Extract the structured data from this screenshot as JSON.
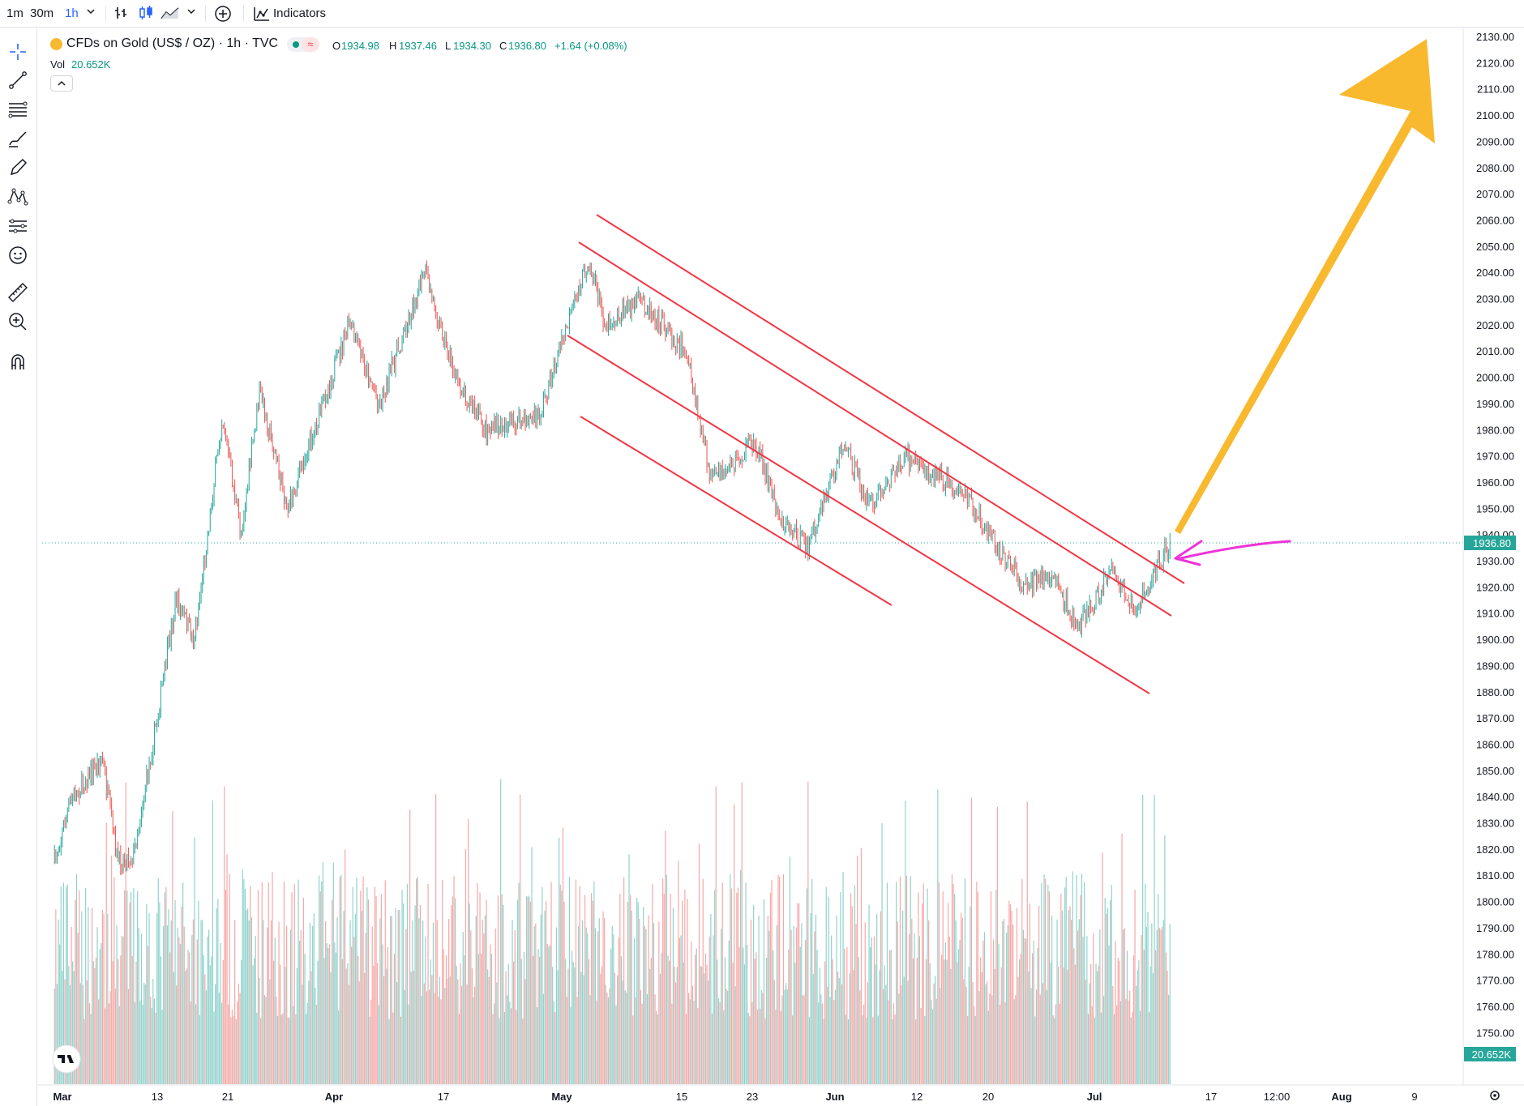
{
  "toolbar": {
    "intervals": [
      "1m",
      "30m",
      "1h"
    ],
    "active_interval": "1h",
    "indicators_label": "Indicators"
  },
  "legend": {
    "symbol_title": "CFDs on Gold (US$ / OZ) · 1h · TVC",
    "open_label": "O",
    "open": "1934.98",
    "high_label": "H",
    "high": "1937.46",
    "low_label": "L",
    "low": "1934.30",
    "close_label": "C",
    "close": "1936.80",
    "change": "+1.64 (+0.08%)",
    "vol_label": "Vol",
    "vol_value": "20.652K",
    "market_status_icon": "market-open-dot-icon",
    "data_status_icon": "approx-icon"
  },
  "price_axis": {
    "ticks": [
      "2130.00",
      "2120.00",
      "2110.00",
      "2100.00",
      "2090.00",
      "2080.00",
      "2070.00",
      "2060.00",
      "2050.00",
      "2040.00",
      "2030.00",
      "2020.00",
      "2010.00",
      "2000.00",
      "1990.00",
      "1980.00",
      "1970.00",
      "1960.00",
      "1950.00",
      "1940.00",
      "1930.00",
      "1920.00",
      "1910.00",
      "1900.00",
      "1890.00",
      "1880.00",
      "1870.00",
      "1860.00",
      "1850.00",
      "1840.00",
      "1830.00",
      "1820.00",
      "1810.00",
      "1800.00",
      "1790.00",
      "1780.00",
      "1770.00",
      "1760.00",
      "1750.00"
    ],
    "last_price_label": "1936.80",
    "volume_label": "20.652K"
  },
  "time_axis": {
    "labels": [
      "Mar",
      "13",
      "21",
      "Apr",
      "17",
      "May",
      "15",
      "23",
      "Jun",
      "12",
      "20",
      "Jul",
      "17",
      "12:00",
      "Aug",
      "9"
    ],
    "bold_labels": [
      "Mar",
      "Apr",
      "May",
      "Jun",
      "Jul",
      "Aug"
    ]
  },
  "colors": {
    "up": "#26a69a",
    "down": "#ef5350",
    "channel": "#f23645",
    "arrow": "#f9b92e",
    "pink_arrow": "#ee33d8",
    "accent": "#2962ff"
  },
  "chart_data": {
    "type": "candlestick",
    "symbol": "CFDs on Gold (US$ / OZ)",
    "interval": "1h",
    "source": "TVC",
    "ylim": [
      1745,
      2135
    ],
    "last_price": 1936.8,
    "price_path": [
      {
        "date": "Feb 28",
        "price": 1815
      },
      {
        "date": "Mar 2",
        "price": 1838
      },
      {
        "date": "Mar 6",
        "price": 1855
      },
      {
        "date": "Mar 8",
        "price": 1815
      },
      {
        "date": "Mar 10",
        "price": 1818
      },
      {
        "date": "Mar 13",
        "price": 1870
      },
      {
        "date": "Mar 15",
        "price": 1915
      },
      {
        "date": "Mar 17",
        "price": 1900
      },
      {
        "date": "Mar 20",
        "price": 1985
      },
      {
        "date": "Mar 22",
        "price": 1940
      },
      {
        "date": "Mar 24",
        "price": 1995
      },
      {
        "date": "Mar 27",
        "price": 1950
      },
      {
        "date": "Apr 3",
        "price": 2020
      },
      {
        "date": "Apr 7",
        "price": 1990
      },
      {
        "date": "Apr 13",
        "price": 2040
      },
      {
        "date": "Apr 17",
        "price": 2000
      },
      {
        "date": "Apr 21",
        "price": 1980
      },
      {
        "date": "Apr 28",
        "price": 1985
      },
      {
        "date": "May 4",
        "price": 2045
      },
      {
        "date": "May 6",
        "price": 2020
      },
      {
        "date": "May 10",
        "price": 2030
      },
      {
        "date": "May 15",
        "price": 2010
      },
      {
        "date": "May 18",
        "price": 1960
      },
      {
        "date": "May 23",
        "price": 1975
      },
      {
        "date": "May 26",
        "price": 1945
      },
      {
        "date": "May 29",
        "price": 1935
      },
      {
        "date": "Jun 2",
        "price": 1975
      },
      {
        "date": "Jun 5",
        "price": 1950
      },
      {
        "date": "Jun 9",
        "price": 1970
      },
      {
        "date": "Jun 14",
        "price": 1960
      },
      {
        "date": "Jun 16",
        "price": 1955
      },
      {
        "date": "Jun 21",
        "price": 1930
      },
      {
        "date": "Jun 23",
        "price": 1920
      },
      {
        "date": "Jun 26",
        "price": 1925
      },
      {
        "date": "Jun 29",
        "price": 1905
      },
      {
        "date": "Jul 3",
        "price": 1925
      },
      {
        "date": "Jul 6",
        "price": 1912
      },
      {
        "date": "Jul 8",
        "price": 1925
      },
      {
        "date": "Jul 10",
        "price": 1936.8
      }
    ],
    "drawings": [
      {
        "kind": "trend-line",
        "from": {
          "date": "May 4",
          "price": 2062
        },
        "to": {
          "date": "Jul 11",
          "price": 1922
        }
      },
      {
        "kind": "trend-line",
        "from": {
          "date": "May 3",
          "price": 2053
        },
        "to": {
          "date": "Jul 11",
          "price": 1908
        }
      },
      {
        "kind": "trend-line",
        "from": {
          "date": "May 2",
          "price": 2016
        },
        "to": {
          "date": "Jul 11",
          "price": 1880
        }
      },
      {
        "kind": "trend-line",
        "from": {
          "date": "May 3",
          "price": 1984
        },
        "to": {
          "date": "Jun 5",
          "price": 1912
        }
      },
      {
        "kind": "arrow",
        "from": {
          "date": "Jul 10",
          "price": 1940
        },
        "to": {
          "date": "Aug 9",
          "price": 2128
        }
      },
      {
        "kind": "arrow",
        "from": {
          "date": "Jul 24",
          "price": 1939
        },
        "to": {
          "date": "Jul 10",
          "price": 1931
        }
      }
    ]
  }
}
